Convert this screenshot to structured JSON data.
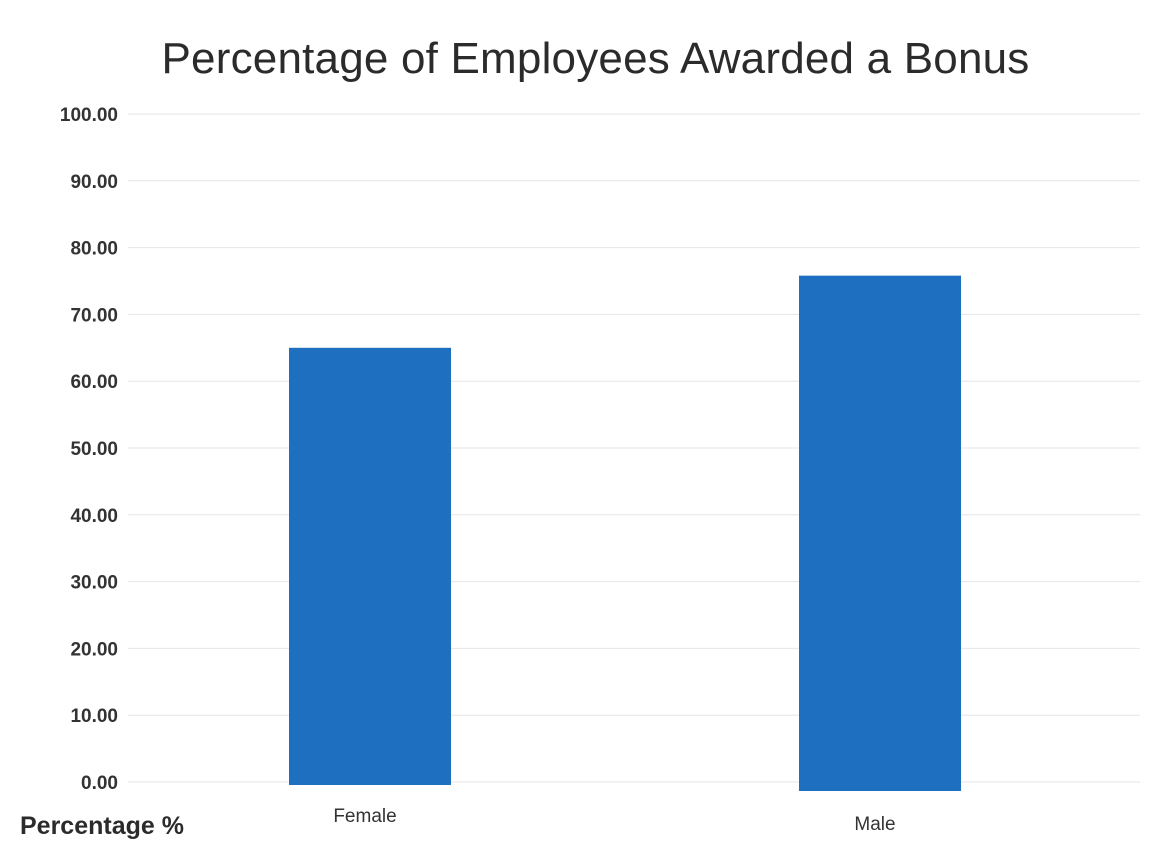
{
  "chart_data": {
    "type": "bar",
    "title": "Percentage of Employees Awarded a Bonus",
    "xlabel": "",
    "ylabel": "Percentage %",
    "categories": [
      "Female",
      "Male"
    ],
    "values": [
      65.0,
      75.8
    ],
    "ylim": [
      0,
      100
    ],
    "yticks": [
      "0.00",
      "10.00",
      "20.00",
      "30.00",
      "40.00",
      "50.00",
      "60.00",
      "70.00",
      "80.00",
      "90.00",
      "100.00"
    ],
    "grid": true,
    "legend": "none",
    "bar_color": "#1f6fc0"
  }
}
